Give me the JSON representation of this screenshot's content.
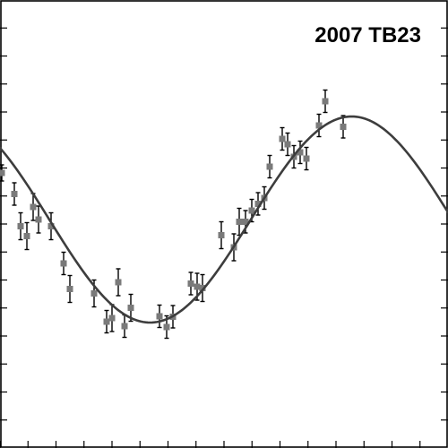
{
  "chart_data": {
    "type": "scatter",
    "title": "2007 TB23",
    "xlabel": "",
    "ylabel": "",
    "xlim": [
      0,
      1
    ],
    "ylim": [
      0,
      1
    ],
    "grid": false,
    "series": [
      {
        "kind": "points_with_errorbars",
        "color": "#7a7a7a",
        "points": [
          {
            "x": 0.004,
            "y": 0.614,
            "err": 0.018
          },
          {
            "x": 0.032,
            "y": 0.567,
            "err": 0.025
          },
          {
            "x": 0.046,
            "y": 0.495,
            "err": 0.03
          },
          {
            "x": 0.06,
            "y": 0.473,
            "err": 0.03
          },
          {
            "x": 0.074,
            "y": 0.538,
            "err": 0.03
          },
          {
            "x": 0.086,
            "y": 0.51,
            "err": 0.03
          },
          {
            "x": 0.114,
            "y": 0.495,
            "err": 0.03
          },
          {
            "x": 0.142,
            "y": 0.412,
            "err": 0.025
          },
          {
            "x": 0.156,
            "y": 0.355,
            "err": 0.03
          },
          {
            "x": 0.21,
            "y": 0.345,
            "err": 0.03
          },
          {
            "x": 0.238,
            "y": 0.282,
            "err": 0.025
          },
          {
            "x": 0.25,
            "y": 0.29,
            "err": 0.03
          },
          {
            "x": 0.264,
            "y": 0.37,
            "err": 0.03
          },
          {
            "x": 0.278,
            "y": 0.272,
            "err": 0.025
          },
          {
            "x": 0.292,
            "y": 0.313,
            "err": 0.03
          },
          {
            "x": 0.356,
            "y": 0.294,
            "err": 0.025
          },
          {
            "x": 0.372,
            "y": 0.27,
            "err": 0.025
          },
          {
            "x": 0.386,
            "y": 0.293,
            "err": 0.025
          },
          {
            "x": 0.426,
            "y": 0.367,
            "err": 0.025
          },
          {
            "x": 0.44,
            "y": 0.36,
            "err": 0.03
          },
          {
            "x": 0.452,
            "y": 0.357,
            "err": 0.03
          },
          {
            "x": 0.494,
            "y": 0.475,
            "err": 0.03
          },
          {
            "x": 0.522,
            "y": 0.448,
            "err": 0.03
          },
          {
            "x": 0.534,
            "y": 0.505,
            "err": 0.03
          },
          {
            "x": 0.548,
            "y": 0.505,
            "err": 0.025
          },
          {
            "x": 0.562,
            "y": 0.53,
            "err": 0.025
          },
          {
            "x": 0.576,
            "y": 0.545,
            "err": 0.025
          },
          {
            "x": 0.59,
            "y": 0.558,
            "err": 0.025
          },
          {
            "x": 0.602,
            "y": 0.628,
            "err": 0.025
          },
          {
            "x": 0.63,
            "y": 0.69,
            "err": 0.025
          },
          {
            "x": 0.642,
            "y": 0.678,
            "err": 0.025
          },
          {
            "x": 0.656,
            "y": 0.65,
            "err": 0.025
          },
          {
            "x": 0.67,
            "y": 0.66,
            "err": 0.025
          },
          {
            "x": 0.684,
            "y": 0.646,
            "err": 0.025
          },
          {
            "x": 0.712,
            "y": 0.72,
            "err": 0.025
          },
          {
            "x": 0.726,
            "y": 0.774,
            "err": 0.025
          },
          {
            "x": 0.766,
            "y": 0.717,
            "err": 0.025
          }
        ]
      },
      {
        "kind": "fit_curve",
        "color": "#3d3d3d",
        "model": "sinusoid",
        "offset": 0.51,
        "amplitude": 0.23,
        "period": 0.9,
        "phase_max_x": 0.785,
        "x_range": [
          0,
          1
        ]
      }
    ],
    "x_ticks": [
      0.0,
      0.0625,
      0.125,
      0.1875,
      0.25,
      0.3125,
      0.375,
      0.4375,
      0.5,
      0.5625,
      0.625,
      0.6875,
      0.75,
      0.8125,
      0.875,
      0.9375
    ],
    "y_ticks": [
      0.0625,
      0.125,
      0.1875,
      0.25,
      0.3125,
      0.375,
      0.4375,
      0.5,
      0.5625,
      0.625,
      0.6875,
      0.75,
      0.8125,
      0.875,
      0.9375
    ]
  }
}
